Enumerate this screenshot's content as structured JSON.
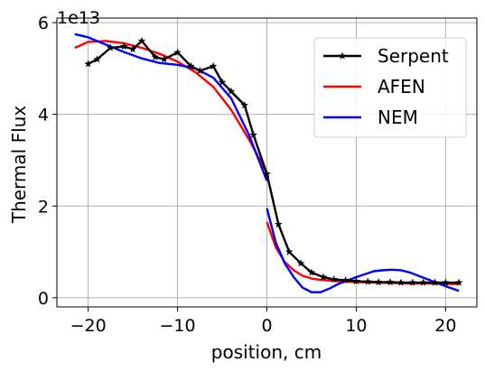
{
  "chart_data": {
    "type": "line",
    "xlabel": "position, cm",
    "ylabel": "Thermal Flux",
    "offset_text": "1e13",
    "xlim": [
      -23.5,
      23.5
    ],
    "ylim": [
      -0.2,
      6.1
    ],
    "x_ticks": [
      -20,
      -10,
      0,
      10,
      20
    ],
    "x_tick_labels": [
      "−20",
      "−10",
      "0",
      "10",
      "20"
    ],
    "y_ticks": [
      0,
      2,
      4,
      6
    ],
    "y_tick_labels": [
      "0",
      "2",
      "4",
      "6"
    ],
    "grid": true,
    "legend_position": "upper-right",
    "series": [
      {
        "name": "Serpent",
        "color": "#000000",
        "marker": "star",
        "segments": [
          [
            [
              -20,
              5.1
            ],
            [
              -19,
              5.2
            ],
            [
              -17.5,
              5.45
            ],
            [
              -16,
              5.48
            ],
            [
              -15,
              5.42
            ],
            [
              -14,
              5.6
            ],
            [
              -12.5,
              5.25
            ],
            [
              -11.5,
              5.2
            ],
            [
              -10,
              5.35
            ],
            [
              -8.5,
              5.05
            ],
            [
              -7.5,
              4.95
            ],
            [
              -6,
              5.05
            ],
            [
              -5,
              4.7
            ],
            [
              -4,
              4.5
            ],
            [
              -2.5,
              4.2
            ],
            [
              -1.5,
              3.55
            ],
            [
              0,
              2.7
            ],
            [
              1.3,
              1.6
            ],
            [
              2.5,
              1.0
            ],
            [
              3.8,
              0.75
            ],
            [
              5,
              0.55
            ],
            [
              6.3,
              0.45
            ],
            [
              7.5,
              0.4
            ],
            [
              8.8,
              0.38
            ],
            [
              10,
              0.36
            ],
            [
              11.3,
              0.35
            ],
            [
              12.5,
              0.34
            ],
            [
              13.8,
              0.34
            ],
            [
              15,
              0.33
            ],
            [
              16.3,
              0.33
            ],
            [
              17.5,
              0.33
            ],
            [
              18.8,
              0.33
            ],
            [
              20,
              0.33
            ],
            [
              21.5,
              0.33
            ]
          ]
        ]
      },
      {
        "name": "AFEN",
        "color": "#ff0000",
        "marker": "none",
        "segments": [
          [
            [
              -21.5,
              5.45
            ],
            [
              -20,
              5.58
            ],
            [
              -18,
              5.6
            ],
            [
              -16,
              5.55
            ],
            [
              -14,
              5.45
            ],
            [
              -12,
              5.32
            ],
            [
              -10,
              5.15
            ],
            [
              -8,
              4.92
            ],
            [
              -6,
              4.6
            ],
            [
              -4,
              4.1
            ],
            [
              -2,
              3.45
            ],
            [
              0,
              2.72
            ]
          ],
          [
            [
              0,
              1.65
            ],
            [
              1,
              1.1
            ],
            [
              2,
              0.78
            ],
            [
              3,
              0.6
            ],
            [
              4,
              0.48
            ],
            [
              5,
              0.42
            ],
            [
              6,
              0.39
            ],
            [
              8,
              0.36
            ],
            [
              10,
              0.34
            ],
            [
              12,
              0.33
            ],
            [
              14,
              0.32
            ],
            [
              16,
              0.31
            ],
            [
              18,
              0.31
            ],
            [
              20,
              0.3
            ],
            [
              21.5,
              0.3
            ]
          ]
        ]
      },
      {
        "name": "NEM",
        "color": "#0000ff",
        "marker": "none",
        "segments": [
          [
            [
              -21.5,
              5.75
            ],
            [
              -20,
              5.68
            ],
            [
              -18,
              5.52
            ],
            [
              -16,
              5.36
            ],
            [
              -14,
              5.22
            ],
            [
              -12,
              5.12
            ],
            [
              -10,
              5.08
            ],
            [
              -8,
              5.0
            ],
            [
              -6,
              4.8
            ],
            [
              -4,
              4.35
            ],
            [
              -2,
              3.55
            ],
            [
              0,
              2.55
            ]
          ],
          [
            [
              0,
              1.95
            ],
            [
              1,
              1.2
            ],
            [
              2,
              0.75
            ],
            [
              3,
              0.45
            ],
            [
              4,
              0.22
            ],
            [
              5,
              0.12
            ],
            [
              6,
              0.12
            ],
            [
              7,
              0.2
            ],
            [
              8,
              0.3
            ],
            [
              10,
              0.45
            ],
            [
              12,
              0.58
            ],
            [
              13,
              0.6
            ],
            [
              14,
              0.61
            ],
            [
              15,
              0.6
            ],
            [
              16,
              0.55
            ],
            [
              18,
              0.4
            ],
            [
              20,
              0.25
            ],
            [
              21.5,
              0.15
            ]
          ]
        ]
      }
    ]
  }
}
